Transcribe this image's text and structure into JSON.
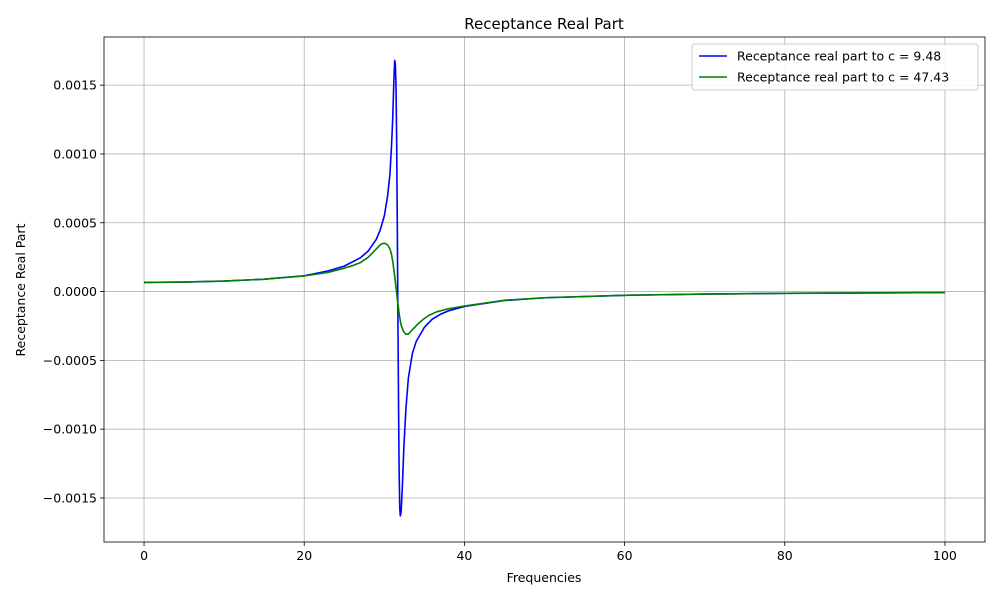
{
  "chart_data": {
    "type": "line",
    "title": "Receptance Real Part",
    "xlabel": "Frequencies",
    "ylabel": "Receptance Real Part",
    "xlim": [
      -5,
      105
    ],
    "ylim": [
      -0.00182,
      0.00185
    ],
    "xticks": [
      0,
      20,
      40,
      60,
      80,
      100
    ],
    "xtick_labels": [
      "0",
      "20",
      "40",
      "60",
      "80",
      "100"
    ],
    "yticks": [
      -0.0015,
      -0.001,
      -0.0005,
      0.0,
      0.0005,
      0.001,
      0.0015
    ],
    "ytick_labels": [
      "−0.0015",
      "−0.0010",
      "−0.0005",
      "0.0000",
      "0.0005",
      "0.0010",
      "0.0015"
    ],
    "grid": true,
    "legend_position": "upper right",
    "series": [
      {
        "name": "Receptance real part to c = 9.48",
        "color": "#0000ff",
        "x": [
          0,
          5,
          10,
          15,
          20,
          23,
          25,
          27,
          28,
          29,
          29.5,
          30,
          30.4,
          30.7,
          30.9,
          31.05,
          31.15,
          31.22,
          31.3,
          31.38,
          31.46,
          31.54,
          31.62,
          31.7,
          31.78,
          31.85,
          31.93,
          32.0,
          32.1,
          32.25,
          32.45,
          32.7,
          33.0,
          33.5,
          34,
          35,
          36,
          37,
          38,
          40,
          45,
          50,
          60,
          70,
          80,
          90,
          100
        ],
        "y": [
          6.6e-05,
          6.9e-05,
          7.6e-05,
          9e-05,
          0.000115,
          0.00015,
          0.000185,
          0.000245,
          0.000295,
          0.00038,
          0.00045,
          0.00055,
          0.00069,
          0.00085,
          0.00106,
          0.00126,
          0.00145,
          0.00158,
          0.00168,
          0.00165,
          0.0015,
          0.0011,
          0.0005,
          -0.0002,
          -0.00085,
          -0.0013,
          -0.00158,
          -0.00163,
          -0.0016,
          -0.00142,
          -0.00112,
          -0.00085,
          -0.00063,
          -0.00045,
          -0.00036,
          -0.00026,
          -0.0002,
          -0.000165,
          -0.00014,
          -0.000108,
          -6.5e-05,
          -4.5e-05,
          -2.7e-05,
          -1.8e-05,
          -1.3e-05,
          -1e-05,
          -7e-06
        ]
      },
      {
        "name": "Receptance real part to c = 47.43",
        "color": "#008000",
        "x": [
          0,
          5,
          10,
          15,
          20,
          23,
          25,
          26,
          27,
          28,
          28.5,
          29,
          29.5,
          29.8,
          30.1,
          30.4,
          30.7,
          30.9,
          31.1,
          31.3,
          31.5,
          31.7,
          31.9,
          32.1,
          32.4,
          32.7,
          33.0,
          33.3,
          33.7,
          34.2,
          34.8,
          35.5,
          36.5,
          38,
          40,
          45,
          50,
          60,
          70,
          80,
          90,
          100
        ],
        "y": [
          6.6e-05,
          6.9e-05,
          7.6e-05,
          9e-05,
          0.000113,
          0.00014,
          0.00017,
          0.000188,
          0.00021,
          0.00025,
          0.00028,
          0.00031,
          0.00034,
          0.00035,
          0.00035,
          0.00034,
          0.00031,
          0.00027,
          0.0002,
          0.00011,
          1e-05,
          -9e-05,
          -0.00018,
          -0.000245,
          -0.00029,
          -0.00031,
          -0.00031,
          -0.00029,
          -0.000265,
          -0.000235,
          -0.000205,
          -0.000175,
          -0.000148,
          -0.000125,
          -0.000105,
          -6.3e-05,
          -4.5e-05,
          -2.7e-05,
          -1.8e-05,
          -1.3e-05,
          -1e-05,
          -7e-06
        ]
      }
    ]
  }
}
